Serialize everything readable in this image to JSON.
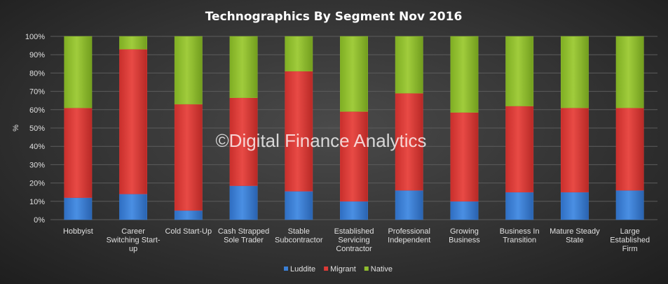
{
  "chart_data": {
    "type": "bar",
    "stacked": true,
    "title": "Technographics  By Segment  Nov 2016",
    "ylabel": "%",
    "xlabel": "",
    "ylim": [
      0,
      100
    ],
    "yticks": [
      "0%",
      "10%",
      "20%",
      "30%",
      "40%",
      "50%",
      "60%",
      "70%",
      "80%",
      "90%",
      "100%"
    ],
    "grid": true,
    "legend_position": "bottom",
    "watermark": "©Digital Finance Analytics",
    "categories": [
      [
        "Hobbyist"
      ],
      [
        "Career",
        "Switching Start-",
        "up"
      ],
      [
        "Cold Start-Up"
      ],
      [
        "Cash Strapped",
        "Sole Trader"
      ],
      [
        "Stable",
        "Subcontractor"
      ],
      [
        "Established",
        "Servicing",
        "Contractor"
      ],
      [
        "Professional",
        "Independent"
      ],
      [
        "Growing",
        "Business"
      ],
      [
        "Business In",
        "Transition"
      ],
      [
        "Mature Steady",
        "State"
      ],
      [
        "Large",
        "Established",
        "Firm"
      ]
    ],
    "series": [
      {
        "name": "Luddite",
        "color": "#3a7fd5",
        "values": [
          12,
          14,
          5,
          18.5,
          15.5,
          10,
          16,
          10,
          15,
          15,
          16
        ]
      },
      {
        "name": "Migrant",
        "color": "#dd3a36",
        "values": [
          49,
          79,
          58,
          48,
          65.5,
          49,
          53,
          48.5,
          47,
          46,
          45
        ]
      },
      {
        "name": "Native",
        "color": "#8fbd2e",
        "values": [
          39,
          7,
          37,
          33.5,
          19,
          41,
          31,
          41.5,
          38,
          39,
          39
        ]
      }
    ]
  }
}
